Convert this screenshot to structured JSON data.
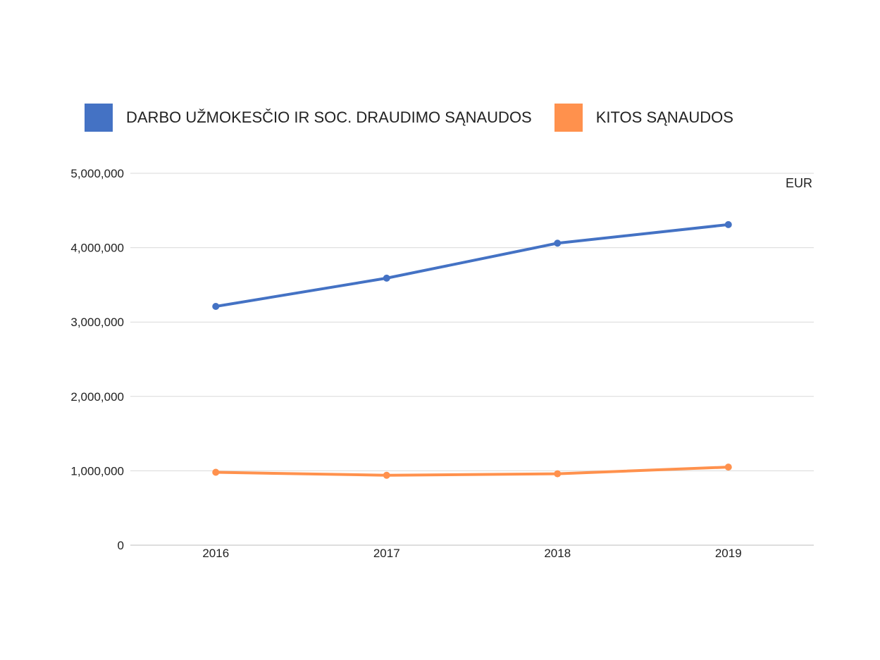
{
  "chart_data": {
    "type": "line",
    "categories": [
      "2016",
      "2017",
      "2018",
      "2019"
    ],
    "series": [
      {
        "name": "DARBO UŽMOKESČIO IR SOC. DRAUDIMO SĄNAUDOS",
        "color": "#4472c4",
        "values": [
          3210000,
          3590000,
          4060000,
          4310000
        ]
      },
      {
        "name": "KITOS SĄNAUDOS",
        "color": "#ff914d",
        "values": [
          980000,
          940000,
          960000,
          1050000
        ]
      }
    ],
    "ylim": [
      0,
      5000000
    ],
    "yticks": [
      0,
      1000000,
      2000000,
      3000000,
      4000000,
      5000000
    ],
    "ytick_labels": [
      "0",
      "1,000,000",
      "2,000,000",
      "3,000,000",
      "4,000,000",
      "5,000,000"
    ],
    "unit": "EUR",
    "grid": true,
    "legend_position": "top-left"
  }
}
